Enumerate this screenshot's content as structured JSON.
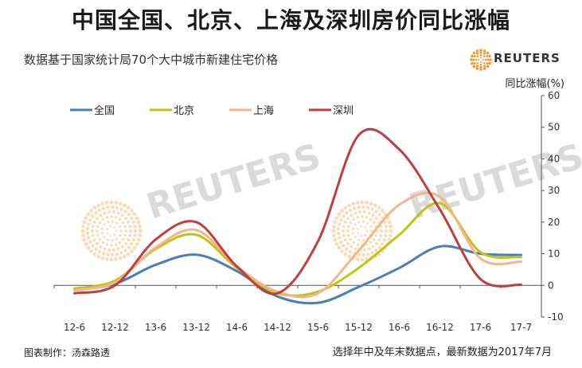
{
  "header": {
    "title": "中国全国、北京、上海及深圳房价同比涨幅",
    "subtitle": "数据基于国家统计局70个大中城市新建住宅价格",
    "logo_text": "REUTERS",
    "watermark_text": "REUTERS"
  },
  "footer": {
    "left": "图表制作：汤森路透",
    "right": "选择年中及年末数据点，最新数据为2017年7月"
  },
  "colors": {
    "national": "#4a7ebb",
    "beijing": "#c3c313",
    "shanghai": "#f4b58a",
    "shenzhen": "#bf3f3f",
    "logo": "#f29b3a"
  },
  "chart_data": {
    "type": "line",
    "ylabel": "同比涨幅(%)",
    "ylim": [
      -10,
      60
    ],
    "yticks": [
      60,
      50,
      40,
      30,
      20,
      10,
      0,
      -10
    ],
    "categories": [
      "12-6",
      "12-12",
      "13-6",
      "13-12",
      "14-6",
      "14-12",
      "15-6",
      "15-12",
      "16-6",
      "16-12",
      "17-6",
      "17-7"
    ],
    "legend_position": "top-left",
    "grid": false,
    "series": [
      {
        "name": "全国",
        "color_key": "national",
        "values": [
          -1.5,
          0.5,
          6.5,
          9.7,
          4.5,
          -3.5,
          -5.5,
          -0.5,
          5.5,
          12.3,
          10.0,
          9.6
        ]
      },
      {
        "name": "北京",
        "color_key": "beijing",
        "values": [
          -1.0,
          1.5,
          11.5,
          16.0,
          5.5,
          -2.5,
          -2.0,
          5.5,
          16.0,
          26.0,
          10.5,
          9.0
        ]
      },
      {
        "name": "上海",
        "color_key": "shanghai",
        "values": [
          -1.5,
          1.0,
          12.0,
          17.5,
          6.0,
          -2.0,
          -2.5,
          11.0,
          25.5,
          28.0,
          8.5,
          7.5
        ]
      },
      {
        "name": "深圳",
        "color_key": "shenzhen",
        "values": [
          -2.5,
          0.0,
          14.5,
          20.0,
          6.0,
          -2.5,
          14.0,
          47.5,
          43.0,
          24.0,
          2.0,
          0.2
        ]
      }
    ]
  }
}
